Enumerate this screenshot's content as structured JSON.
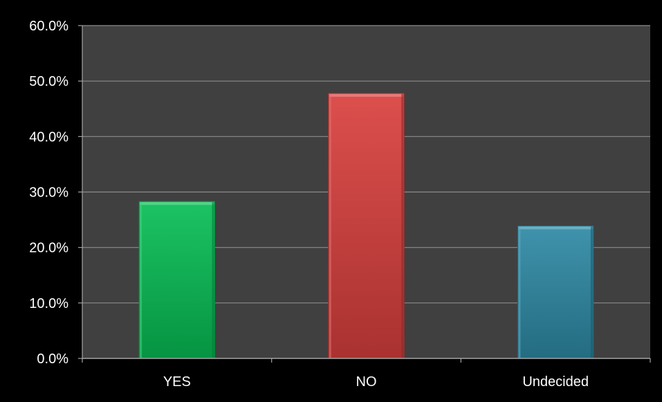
{
  "chart_data": {
    "type": "bar",
    "categories": [
      "YES",
      "NO",
      "Undecided"
    ],
    "values": [
      28.3,
      47.8,
      23.9
    ],
    "value_format": "percent",
    "y_ticks": [
      "0.0%",
      "10.0%",
      "20.0%",
      "30.0%",
      "40.0%",
      "50.0%",
      "60.0%"
    ],
    "ylim": [
      0,
      60
    ],
    "grid": true,
    "legend": "none",
    "colors": [
      "#08BE55",
      "#D9403E",
      "#2E8AA5"
    ],
    "plot_background": "#404040",
    "background": "#000000",
    "gridline_color": "#8C8C8C",
    "text_color": "#FFFFFF"
  }
}
